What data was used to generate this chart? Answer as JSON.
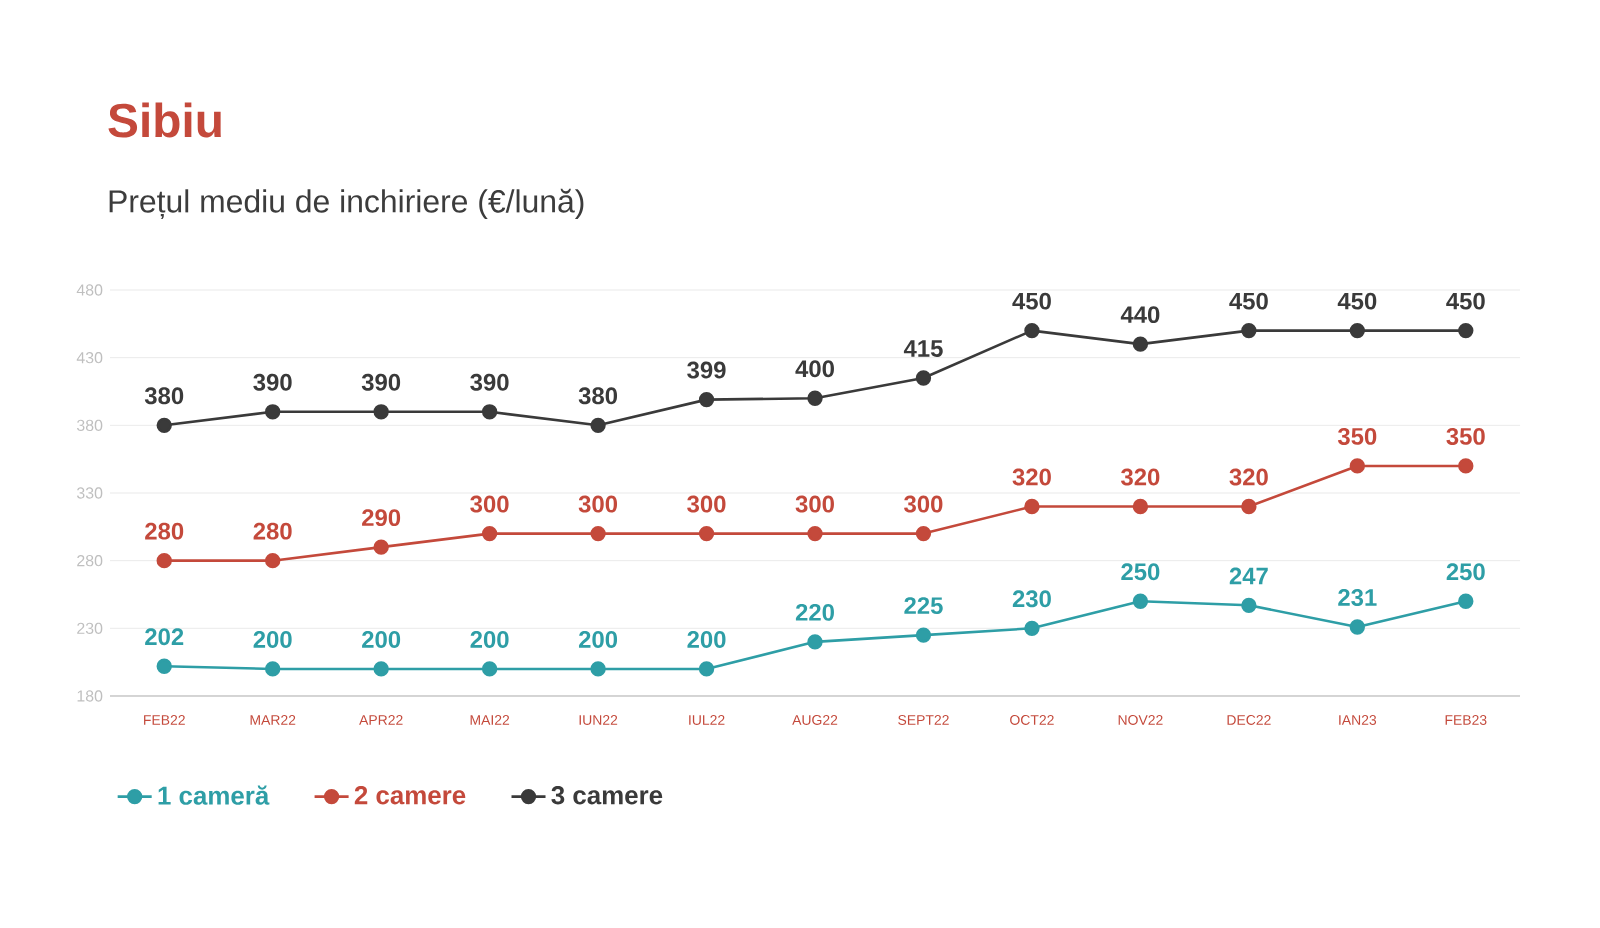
{
  "chart_data": {
    "type": "line",
    "title": "Sibiu",
    "subtitle": "Prețul mediu de inchiriere (€/lună)",
    "categories": [
      "FEB22",
      "MAR22",
      "APR22",
      "MAI22",
      "IUN22",
      "IUL22",
      "AUG22",
      "SEPT22",
      "OCT22",
      "NOV22",
      "DEC22",
      "IAN23",
      "FEB23"
    ],
    "series": [
      {
        "name": "1 cameră",
        "color": "#2e9ea6",
        "values": [
          202,
          200,
          200,
          200,
          200,
          200,
          220,
          225,
          230,
          250,
          247,
          231,
          250
        ]
      },
      {
        "name": "2 camere",
        "color": "#c4493b",
        "values": [
          280,
          280,
          290,
          300,
          300,
          300,
          300,
          300,
          320,
          320,
          320,
          350,
          350
        ]
      },
      {
        "name": "3 camere",
        "color": "#3a3a3a",
        "values": [
          380,
          390,
          390,
          390,
          380,
          399,
          400,
          415,
          450,
          440,
          450,
          450,
          450
        ]
      }
    ],
    "ylim": [
      180,
      480
    ],
    "yticks": [
      180,
      230,
      280,
      330,
      380,
      430,
      480
    ],
    "grid": "y",
    "legend": "bottom left",
    "marker": "circle",
    "line_style": "solid",
    "data_labels": true
  }
}
